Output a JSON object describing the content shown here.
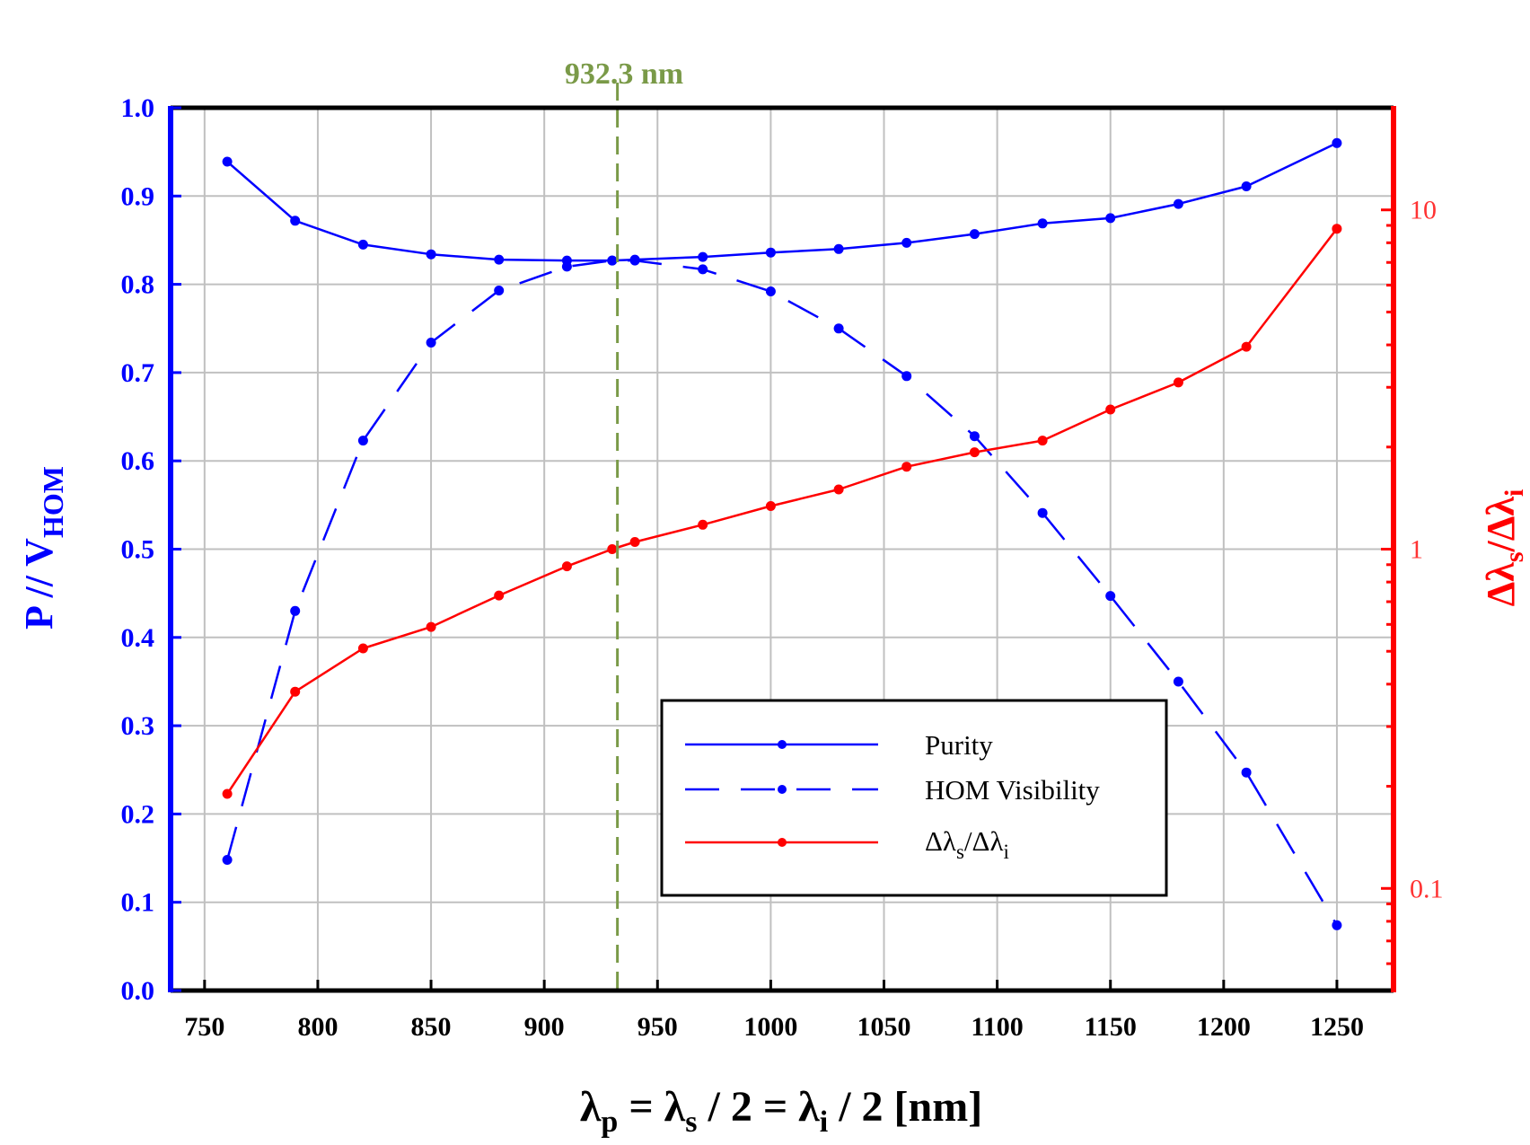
{
  "chart_data": {
    "type": "line",
    "x": [
      760,
      790,
      820,
      850,
      880,
      910,
      930,
      940,
      970,
      1000,
      1030,
      1060,
      1090,
      1120,
      1150,
      1180,
      1210,
      1250
    ],
    "series": [
      {
        "name": "Purity",
        "axis": "left",
        "style": "solid",
        "color": "#0000ff",
        "x": [
          760,
          790,
          820,
          850,
          880,
          910,
          930,
          940,
          970,
          1000,
          1030,
          1060,
          1090,
          1120,
          1150,
          1180,
          1210,
          1250
        ],
        "values": [
          0.939,
          0.872,
          0.845,
          0.834,
          0.828,
          0.827,
          0.827,
          0.828,
          0.831,
          0.836,
          0.84,
          0.847,
          0.857,
          0.869,
          0.875,
          0.891,
          0.911,
          0.96
        ]
      },
      {
        "name": "HOM Visibility",
        "axis": "left",
        "style": "dashed",
        "color": "#0000ff",
        "x": [
          760,
          790,
          820,
          850,
          880,
          910,
          930,
          940,
          970,
          1000,
          1030,
          1060,
          1090,
          1120,
          1150,
          1180,
          1210,
          1250
        ],
        "values": [
          0.148,
          0.43,
          0.623,
          0.734,
          0.793,
          0.82,
          0.827,
          0.827,
          0.817,
          0.792,
          0.75,
          0.696,
          0.628,
          0.541,
          0.447,
          0.35,
          0.247,
          0.074
        ]
      },
      {
        "name": "Δλs/Δλi",
        "legend_main": "Δλ",
        "legend_sub1": "s",
        "legend_mid": "/Δλ",
        "legend_sub2": "i",
        "axis": "right",
        "style": "solid",
        "color": "#ff0000",
        "x": [
          760,
          790,
          820,
          850,
          880,
          910,
          930,
          940,
          970,
          1000,
          1030,
          1060,
          1090,
          1120,
          1150,
          1180,
          1210,
          1250
        ],
        "values": [
          0.19,
          0.38,
          0.51,
          0.59,
          0.73,
          0.89,
          1.0,
          1.05,
          1.18,
          1.34,
          1.5,
          1.75,
          1.93,
          2.09,
          2.58,
          3.1,
          3.95,
          8.8
        ]
      }
    ],
    "xlim": [
      735,
      1275
    ],
    "ylim_left": [
      0.0,
      1.0
    ],
    "ylim_right_log": [
      0.05,
      20
    ],
    "xticks": [
      750,
      800,
      850,
      900,
      950,
      1000,
      1050,
      1100,
      1150,
      1200,
      1250
    ],
    "xtick_labels": [
      "750",
      "800",
      "850",
      "900",
      "950",
      "1000",
      "1050",
      "1100",
      "1150",
      "1200",
      "1250"
    ],
    "yticks_left": [
      0.0,
      0.1,
      0.2,
      0.3,
      0.4,
      0.5,
      0.6,
      0.7,
      0.8,
      0.9,
      1.0
    ],
    "ytick_labels_left": [
      "0.0",
      "0.1",
      "0.2",
      "0.3",
      "0.4",
      "0.5",
      "0.6",
      "0.7",
      "0.8",
      "0.9",
      "1.0"
    ],
    "yticks_right": [
      0.1,
      1,
      10
    ],
    "ytick_labels_right": [
      "0.1",
      "1",
      "10"
    ],
    "vline": {
      "x": 932.3,
      "label": "932.3 nm",
      "color": "#7a9a48"
    },
    "xlabel": {
      "l1": "λ",
      "s1": "p",
      "l2": " = λ",
      "s2": "s",
      "l3": " / 2 = λ",
      "s3": "i",
      "l4": " / 2 [nm]"
    },
    "ylabel_left": {
      "main": "P // V",
      "sub": "HOM"
    },
    "ylabel_right": {
      "l1": "Δλ",
      "s1": "s",
      "l2": "/Δλ",
      "s2": "i"
    },
    "grid": true,
    "legend_position": "bottom-right",
    "colors": {
      "left_axis": "#0000ff",
      "right_axis": "#ff0000",
      "right_tick_text": "#ff3333",
      "grid": "#c0c0c0"
    }
  }
}
